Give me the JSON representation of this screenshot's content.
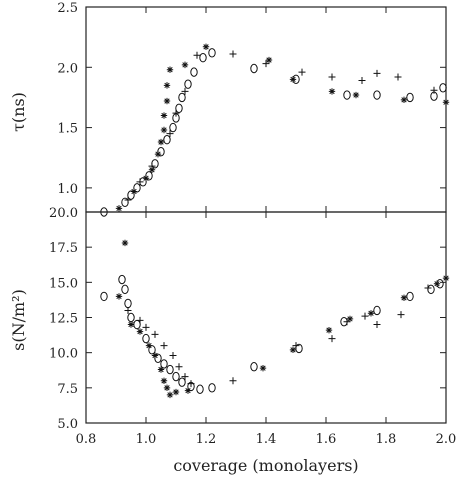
{
  "chart_data": [
    {
      "type": "scatter",
      "panel": "top",
      "ylabel": "τ(ns)",
      "xlim": [
        0.8,
        2.0
      ],
      "ylim": [
        0.8,
        2.5
      ],
      "yticks": [
        "1.0",
        "1.5",
        "2.0",
        "2.5"
      ],
      "ytick_values": [
        1.0,
        1.5,
        2.0,
        2.5
      ],
      "series": [
        {
          "marker": "circle",
          "points": [
            [
              0.86,
              0.8
            ],
            [
              0.93,
              0.88
            ],
            [
              0.95,
              0.94
            ],
            [
              0.97,
              1.0
            ],
            [
              0.99,
              1.05
            ],
            [
              1.01,
              1.1
            ],
            [
              1.03,
              1.2
            ],
            [
              1.05,
              1.3
            ],
            [
              1.07,
              1.4
            ],
            [
              1.09,
              1.5
            ],
            [
              1.1,
              1.58
            ],
            [
              1.11,
              1.66
            ],
            [
              1.12,
              1.75
            ],
            [
              1.14,
              1.86
            ],
            [
              1.16,
              1.96
            ],
            [
              1.19,
              2.08
            ],
            [
              1.22,
              2.12
            ],
            [
              1.36,
              1.99
            ],
            [
              1.5,
              1.9
            ],
            [
              1.67,
              1.77
            ],
            [
              1.77,
              1.77
            ],
            [
              1.88,
              1.75
            ],
            [
              1.96,
              1.76
            ],
            [
              1.99,
              1.83
            ]
          ]
        },
        {
          "marker": "star",
          "points": [
            [
              0.91,
              0.83
            ],
            [
              0.96,
              0.97
            ],
            [
              1.0,
              1.08
            ],
            [
              1.02,
              1.15
            ],
            [
              1.04,
              1.28
            ],
            [
              1.05,
              1.38
            ],
            [
              1.06,
              1.48
            ],
            [
              1.06,
              1.6
            ],
            [
              1.07,
              1.72
            ],
            [
              1.07,
              1.85
            ],
            [
              1.08,
              1.98
            ],
            [
              1.13,
              2.02
            ],
            [
              1.2,
              2.17
            ],
            [
              1.41,
              2.06
            ],
            [
              1.49,
              1.9
            ],
            [
              1.62,
              1.8
            ],
            [
              1.7,
              1.77
            ],
            [
              1.86,
              1.73
            ],
            [
              2.0,
              1.71
            ]
          ]
        },
        {
          "marker": "plus",
          "points": [
            [
              0.94,
              0.9
            ],
            [
              0.98,
              1.05
            ],
            [
              1.02,
              1.18
            ],
            [
              1.08,
              1.45
            ],
            [
              1.1,
              1.62
            ],
            [
              1.13,
              1.8
            ],
            [
              1.17,
              2.1
            ],
            [
              1.29,
              2.11
            ],
            [
              1.4,
              2.03
            ],
            [
              1.52,
              1.96
            ],
            [
              1.62,
              1.92
            ],
            [
              1.72,
              1.89
            ],
            [
              1.77,
              1.95
            ],
            [
              1.84,
              1.92
            ],
            [
              1.96,
              1.81
            ]
          ]
        }
      ]
    },
    {
      "type": "scatter",
      "panel": "bottom",
      "ylabel": "s(N/m²)",
      "xlabel": "coverage (monolayers)",
      "xlim": [
        0.8,
        2.0
      ],
      "ylim": [
        5.0,
        20.0
      ],
      "xticks": [
        "0.8",
        "1.0",
        "1.2",
        "1.4",
        "1.6",
        "1.8",
        "2.0"
      ],
      "xtick_values": [
        0.8,
        1.0,
        1.2,
        1.4,
        1.6,
        1.8,
        2.0
      ],
      "yticks": [
        "5.0",
        "7.5",
        "10.0",
        "12.5",
        "15.0",
        "17.5",
        "20.0"
      ],
      "ytick_values": [
        5.0,
        7.5,
        10.0,
        12.5,
        15.0,
        17.5,
        20.0
      ],
      "series": [
        {
          "marker": "circle",
          "points": [
            [
              0.86,
              14.0
            ],
            [
              0.92,
              15.2
            ],
            [
              0.93,
              14.5
            ],
            [
              0.94,
              13.5
            ],
            [
              0.95,
              12.5
            ],
            [
              0.97,
              12.0
            ],
            [
              1.0,
              11.0
            ],
            [
              1.02,
              10.2
            ],
            [
              1.04,
              9.6
            ],
            [
              1.06,
              9.2
            ],
            [
              1.08,
              8.8
            ],
            [
              1.1,
              8.3
            ],
            [
              1.12,
              7.9
            ],
            [
              1.15,
              7.6
            ],
            [
              1.18,
              7.4
            ],
            [
              1.22,
              7.5
            ],
            [
              1.36,
              9.0
            ],
            [
              1.51,
              10.3
            ],
            [
              1.66,
              12.2
            ],
            [
              1.77,
              13.0
            ],
            [
              1.88,
              14.0
            ],
            [
              1.95,
              14.5
            ],
            [
              1.98,
              14.9
            ]
          ]
        },
        {
          "marker": "star",
          "points": [
            [
              0.91,
              14.0
            ],
            [
              0.93,
              17.8
            ],
            [
              0.95,
              12.0
            ],
            [
              0.98,
              11.5
            ],
            [
              1.01,
              10.5
            ],
            [
              1.03,
              9.8
            ],
            [
              1.05,
              8.8
            ],
            [
              1.06,
              8.0
            ],
            [
              1.07,
              7.5
            ],
            [
              1.08,
              7.0
            ],
            [
              1.1,
              7.2
            ],
            [
              1.14,
              7.3
            ],
            [
              1.39,
              8.9
            ],
            [
              1.49,
              10.2
            ],
            [
              1.61,
              11.6
            ],
            [
              1.68,
              12.4
            ],
            [
              1.75,
              12.8
            ],
            [
              1.86,
              13.9
            ],
            [
              1.97,
              14.9
            ],
            [
              2.0,
              15.3
            ]
          ]
        },
        {
          "marker": "plus",
          "points": [
            [
              0.94,
              13.0
            ],
            [
              0.98,
              12.3
            ],
            [
              1.0,
              11.8
            ],
            [
              1.03,
              11.3
            ],
            [
              1.06,
              10.5
            ],
            [
              1.09,
              9.8
            ],
            [
              1.11,
              9.0
            ],
            [
              1.13,
              8.3
            ],
            [
              1.15,
              7.8
            ],
            [
              1.29,
              8.0
            ],
            [
              1.5,
              10.5
            ],
            [
              1.62,
              11.0
            ],
            [
              1.67,
              12.2
            ],
            [
              1.73,
              12.6
            ],
            [
              1.77,
              12.0
            ],
            [
              1.85,
              12.7
            ],
            [
              1.94,
              14.6
            ]
          ]
        }
      ]
    }
  ]
}
